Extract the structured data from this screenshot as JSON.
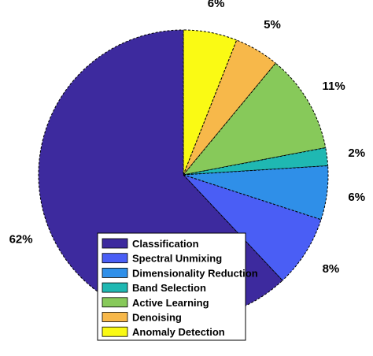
{
  "chart_data": {
    "type": "pie",
    "title": "",
    "legend_position": "bottom-center",
    "slices": [
      {
        "label": "Classification",
        "value": 62,
        "value_label": "62%",
        "color": "#3d2a9e"
      },
      {
        "label": "Spectral Unmixing",
        "value": 8,
        "value_label": "8%",
        "color": "#4a5ef5"
      },
      {
        "label": "Dimensionality Reduction",
        "value": 6,
        "value_label": "6%",
        "color": "#2f8fe8"
      },
      {
        "label": "Band Selection",
        "value": 2,
        "value_label": "2%",
        "color": "#1fb8b2"
      },
      {
        "label": "Active Learning",
        "value": 11,
        "value_label": "11%",
        "color": "#87c95a"
      },
      {
        "label": "Denoising",
        "value": 5,
        "value_label": "5%",
        "color": "#f7b84a"
      },
      {
        "label": "Anomaly Detection",
        "value": 6,
        "value_label": "6%",
        "color": "#fafa14"
      }
    ]
  }
}
